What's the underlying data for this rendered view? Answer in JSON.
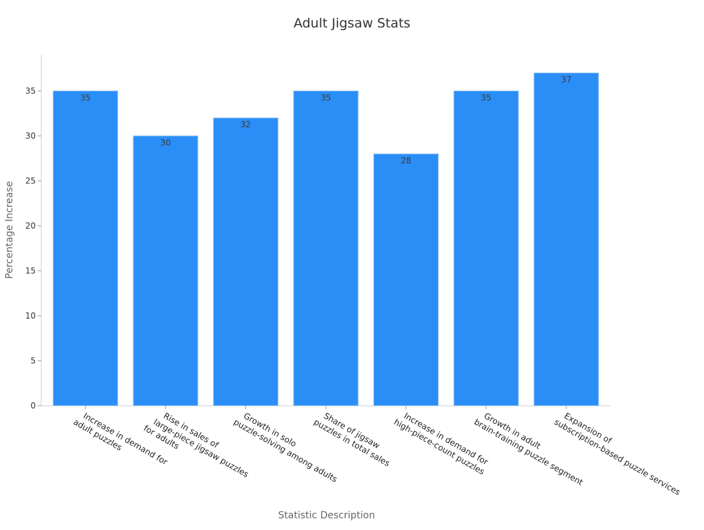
{
  "chart_data": {
    "type": "bar",
    "title": "Adult Jigsaw Stats",
    "xlabel": "Statistic Description",
    "ylabel": "Percentage Increase",
    "ylim": [
      0,
      39
    ],
    "yticks": [
      0,
      5,
      10,
      15,
      20,
      25,
      30,
      35
    ],
    "grid": false,
    "bar_color": "#2b8ef7",
    "categories": [
      [
        "Increase in demand for",
        "adult puzzles"
      ],
      [
        "Rise in sales of",
        "large-piece jigsaw puzzles",
        "for adults"
      ],
      [
        "Growth in solo",
        "puzzle-solving among adults"
      ],
      [
        "Share of jigsaw",
        "puzzles in total sales"
      ],
      [
        "Increase in demand for",
        "high-piece-count puzzles"
      ],
      [
        "Growth in adult",
        "brain-training puzzle segment"
      ],
      [
        "Expansion of",
        "subscription-based puzzle services"
      ]
    ],
    "values": [
      35,
      30,
      32,
      35,
      28,
      35,
      37
    ]
  }
}
